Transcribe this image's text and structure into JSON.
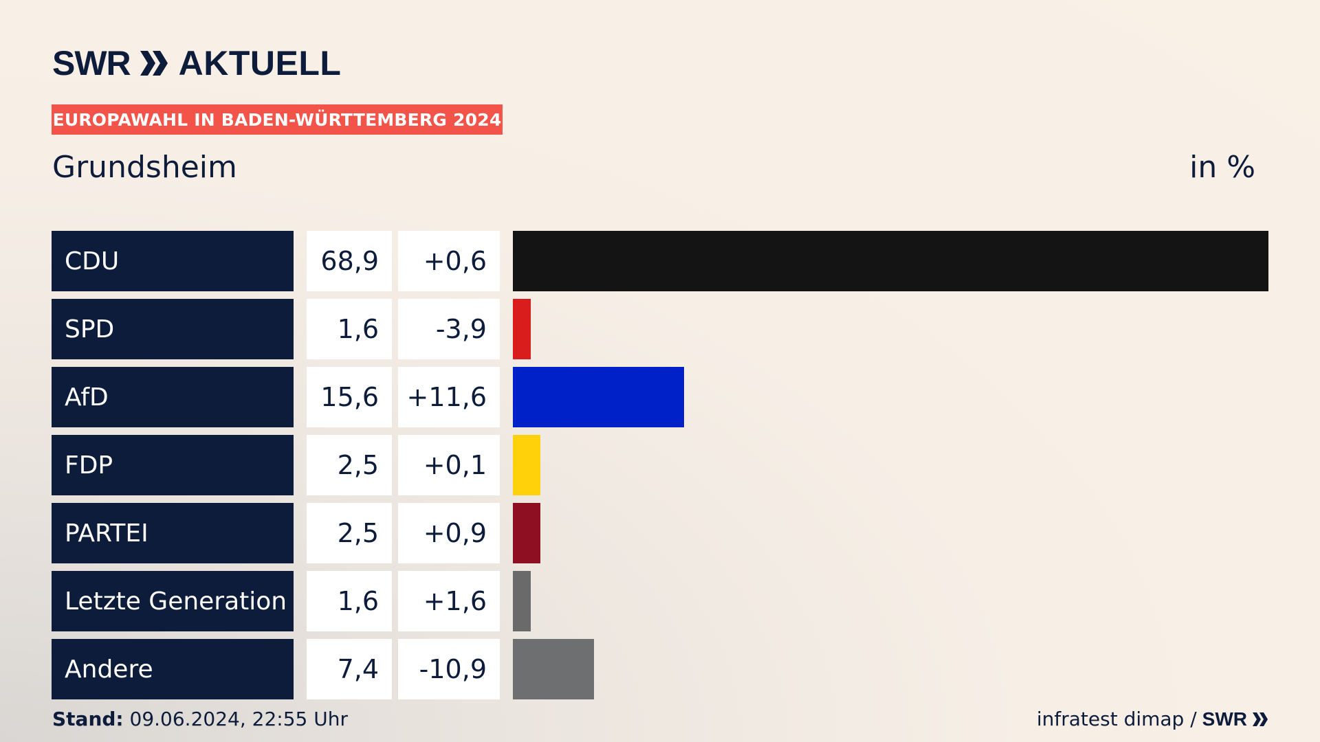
{
  "header": {
    "brand": "SWR",
    "product": "AKTUELL",
    "badge": "EUROPAWAHL IN BADEN-WÜRTTEMBERG 2024",
    "title": "Grundsheim",
    "unit": "in %"
  },
  "chart_data": {
    "type": "bar",
    "orientation": "horizontal",
    "title": "Grundsheim",
    "unit": "in %",
    "categories": [
      "CDU",
      "SPD",
      "AfD",
      "FDP",
      "PARTEI",
      "Letzte Generation",
      "Andere"
    ],
    "values": [
      68.9,
      1.6,
      15.6,
      2.5,
      2.5,
      1.6,
      7.4
    ],
    "value_labels": [
      "68,9",
      "1,6",
      "15,6",
      "2,5",
      "2,5",
      "1,6",
      "7,4"
    ],
    "diff_labels": [
      "+0,6",
      "-3,9",
      "+11,6",
      "+0,1",
      "+0,9",
      "+1,6",
      "-10,9"
    ],
    "colors": [
      "#141414",
      "#d91c1c",
      "#0020c8",
      "#ffd10a",
      "#8e0f22",
      "#6a6a6a",
      "#6e6f71"
    ]
  },
  "footer": {
    "stand_label": "Stand:",
    "stand_value": " 09.06.2024, 22:55 Uhr",
    "source": "infratest dimap /",
    "source_brand": "SWR"
  },
  "colors": {
    "navy": "#0c1c3a",
    "badge": "#f2544a"
  }
}
